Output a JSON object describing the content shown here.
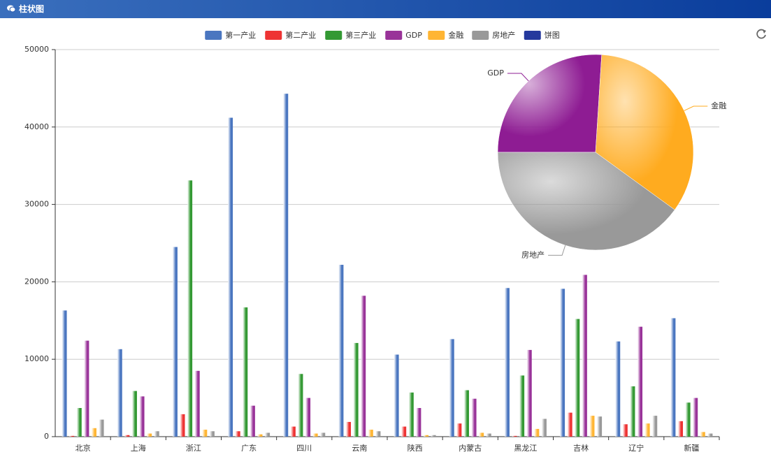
{
  "header": {
    "title": "柱状图"
  },
  "chart_data": [
    {
      "type": "bar",
      "categories": [
        "北京",
        "上海",
        "浙江",
        "广东",
        "四川",
        "云南",
        "陕西",
        "内蒙古",
        "黑龙江",
        "吉林",
        "辽宁",
        "新疆"
      ],
      "series": [
        {
          "name": "第一产业",
          "color": "#4a76c0",
          "values": [
            16300,
            11300,
            24500,
            41200,
            44300,
            22200,
            10600,
            12600,
            19200,
            19100,
            12300,
            15300
          ]
        },
        {
          "name": "第二产业",
          "color": "#ee3333",
          "values": [
            100,
            200,
            2900,
            700,
            1300,
            1900,
            1300,
            1700,
            100,
            3100,
            1600,
            2000
          ]
        },
        {
          "name": "第三产业",
          "color": "#339933",
          "values": [
            3700,
            5900,
            33100,
            16700,
            8100,
            12100,
            5700,
            6000,
            7900,
            15200,
            6500,
            4400
          ]
        },
        {
          "name": "GDP",
          "color": "#993399",
          "values": [
            12400,
            5200,
            8500,
            4000,
            5000,
            18200,
            3700,
            4900,
            11200,
            20900,
            14200,
            5000
          ]
        },
        {
          "name": "金融",
          "color": "#ffb533",
          "values": [
            1100,
            400,
            900,
            300,
            400,
            900,
            200,
            500,
            1000,
            2700,
            1700,
            600
          ]
        },
        {
          "name": "房地产",
          "color": "#999999",
          "values": [
            2200,
            700,
            700,
            500,
            500,
            700,
            200,
            400,
            2300,
            2600,
            2700,
            400
          ]
        }
      ],
      "ylim": [
        0,
        50000
      ],
      "yticks": [
        0,
        10000,
        20000,
        30000,
        40000,
        50000
      ],
      "grid": true
    },
    {
      "type": "pie",
      "name": "饼图",
      "color": "#25399d",
      "categories": [
        "GDP",
        "金融",
        "房地产"
      ],
      "values": [
        26,
        34,
        40
      ],
      "colors": [
        "#8e1c93",
        "#ffab1f",
        "#999999"
      ]
    }
  ]
}
